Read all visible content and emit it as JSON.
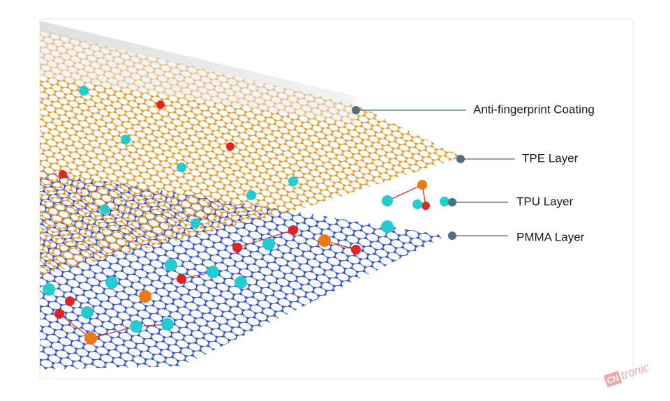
{
  "labels": {
    "coating": "Anti-fingerprint Coating",
    "tpe": "TPE Layer",
    "tpu": "TPU Layer",
    "pmma": "PMMA Layer"
  },
  "watermark": {
    "mark": "CN",
    "text": "tronic"
  }
}
